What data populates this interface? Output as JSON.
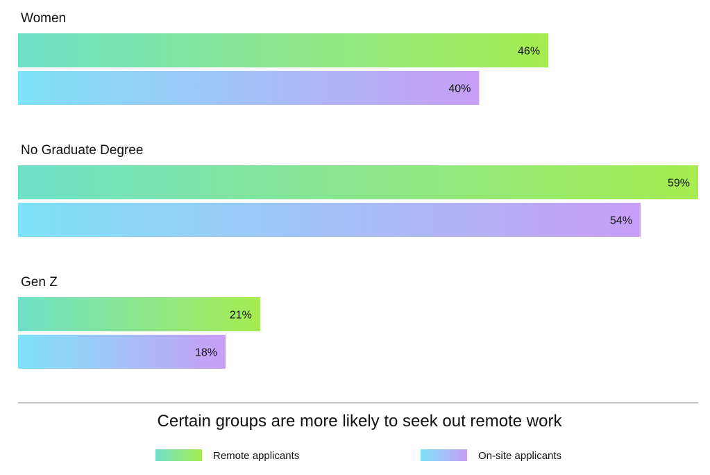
{
  "chart_data": {
    "type": "bar",
    "orientation": "horizontal",
    "title": "Certain groups are more likely to seek out remote work",
    "categories": [
      "Women",
      "No Graduate Degree",
      "Gen Z"
    ],
    "series": [
      {
        "name": "Remote applicants",
        "values": [
          46,
          59,
          21
        ],
        "labels": [
          "46%",
          "59%",
          "21%"
        ],
        "gradient": [
          "#6ee0c8",
          "#a6ec50"
        ]
      },
      {
        "name": "On-site applicants",
        "values": [
          40,
          54,
          18
        ],
        "labels": [
          "40%",
          "54%",
          "18%"
        ],
        "gradient": [
          "#7ee2f8",
          "#c89ef6"
        ]
      }
    ],
    "xlim": [
      0,
      59
    ],
    "grid": false,
    "legend_position": "bottom"
  }
}
